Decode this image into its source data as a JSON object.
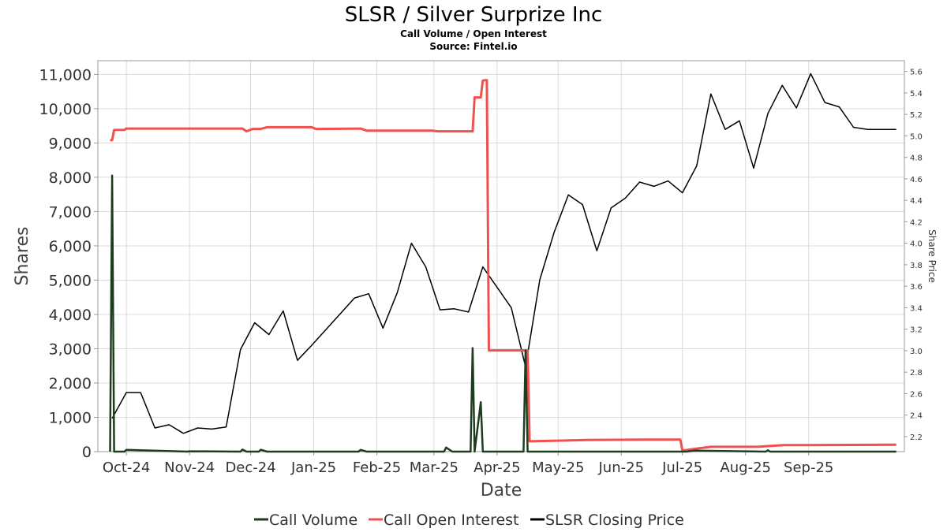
{
  "title": "SLSR / Silver Surprize Inc",
  "subtitle": "Call Volume / Open Interest",
  "source": "Source: Fintel.io",
  "chart_data": {
    "type": "line",
    "xlabel": "Date",
    "ylabel": "Shares",
    "y2label": "Share Price",
    "ylim": [
      0,
      11400
    ],
    "y2lim": [
      2.06,
      5.7
    ],
    "y_ticks": [
      0,
      1000,
      2000,
      3000,
      4000,
      5000,
      6000,
      7000,
      8000,
      9000,
      10000,
      11000
    ],
    "y_tick_labels": [
      "0",
      "1,000",
      "2,000",
      "3,000",
      "4,000",
      "5,000",
      "6,000",
      "7,000",
      "8,000",
      "9,000",
      "10,000",
      "11,000"
    ],
    "y2_ticks": [
      2.2,
      2.4,
      2.6,
      2.8,
      3.0,
      3.2,
      3.4,
      3.6,
      3.8,
      4.0,
      4.2,
      4.4,
      4.6,
      4.8,
      5.0,
      5.2,
      5.4,
      5.6
    ],
    "y2_tick_labels": [
      "2.2",
      "2.4",
      "2.6",
      "2.8",
      "3.0",
      "3.2",
      "3.4",
      "3.6",
      "3.8",
      "4.0",
      "4.2",
      "4.4",
      "4.6",
      "4.8",
      "5.0",
      "5.2",
      "5.4",
      "5.6"
    ],
    "xlim": [
      "2024-09-17",
      "2025-10-18"
    ],
    "x_ticks": [
      "2024-10-01",
      "2024-11-01",
      "2024-12-01",
      "2025-01-01",
      "2025-02-01",
      "2025-03-01",
      "2025-04-01",
      "2025-05-01",
      "2025-06-01",
      "2025-07-01",
      "2025-08-01",
      "2025-09-01"
    ],
    "x_tick_labels": [
      "Oct-24",
      "Nov-24",
      "Dec-24",
      "Jan-25",
      "Feb-25",
      "Mar-25",
      "Apr-25",
      "May-25",
      "Jun-25",
      "Jul-25",
      "Aug-25",
      "Sep-25"
    ],
    "grid": true,
    "legend_position": "bottom",
    "series": [
      {
        "name": "Call Volume",
        "axis": "left",
        "color": "#1e3d1e",
        "x": [
          "2024-09-23",
          "2024-09-24",
          "2024-09-25",
          "2024-09-30",
          "2024-10-01",
          "2024-10-31",
          "2024-11-01",
          "2024-11-26",
          "2024-11-27",
          "2024-11-29",
          "2024-12-02",
          "2024-12-05",
          "2024-12-06",
          "2024-12-09",
          "2025-01-23",
          "2025-01-24",
          "2025-01-27",
          "2025-03-06",
          "2025-03-07",
          "2025-03-10",
          "2025-03-19",
          "2025-03-20",
          "2025-03-21",
          "2025-03-24",
          "2025-03-25",
          "2025-04-11",
          "2025-04-14",
          "2025-04-15",
          "2025-04-16",
          "2025-07-03",
          "2025-07-07",
          "2025-08-11",
          "2025-08-12",
          "2025-08-13",
          "2025-10-14"
        ],
        "y": [
          0,
          8050,
          0,
          0,
          50,
          0,
          10,
          0,
          60,
          0,
          0,
          0,
          55,
          0,
          0,
          50,
          0,
          0,
          120,
          0,
          0,
          3020,
          0,
          1440,
          0,
          0,
          0,
          2950,
          0,
          0,
          30,
          0,
          40,
          0,
          0
        ]
      },
      {
        "name": "Call Open Interest",
        "axis": "left",
        "color": "#f05050",
        "x": [
          "2024-09-23",
          "2024-09-24",
          "2024-09-25",
          "2024-09-30",
          "2024-10-01",
          "2024-11-27",
          "2024-11-29",
          "2024-12-02",
          "2024-12-03",
          "2024-12-05",
          "2024-12-06",
          "2024-12-09",
          "2024-12-31",
          "2025-01-02",
          "2025-01-24",
          "2025-01-27",
          "2025-02-28",
          "2025-03-03",
          "2025-03-20",
          "2025-03-21",
          "2025-03-24",
          "2025-03-25",
          "2025-03-26",
          "2025-03-27",
          "2025-03-28",
          "2025-04-01",
          "2025-04-16",
          "2025-04-17",
          "2025-05-01",
          "2025-05-15",
          "2025-06-15",
          "2025-06-30",
          "2025-07-01",
          "2025-07-02",
          "2025-07-07",
          "2025-07-15",
          "2025-08-07",
          "2025-08-12",
          "2025-08-20",
          "2025-09-01",
          "2025-10-14"
        ],
        "y": [
          9080,
          9080,
          9380,
          9380,
          9420,
          9420,
          9340,
          9410,
          9410,
          9410,
          9410,
          9460,
          9460,
          9410,
          9420,
          9360,
          9360,
          9340,
          9340,
          10330,
          10330,
          10820,
          10830,
          10830,
          2950,
          2950,
          2950,
          300,
          320,
          340,
          350,
          350,
          40,
          40,
          80,
          140,
          140,
          160,
          190,
          190,
          200
        ]
      },
      {
        "name": "SLSR Closing Price",
        "axis": "right",
        "color": "#000000",
        "x": [
          "2024-09-24",
          "2024-10-01",
          "2024-10-08",
          "2024-10-15",
          "2024-10-22",
          "2024-10-29",
          "2024-11-05",
          "2024-11-12",
          "2024-11-19",
          "2024-11-26",
          "2024-12-03",
          "2024-12-10",
          "2024-12-17",
          "2024-12-24",
          "2024-12-31",
          "2025-01-21",
          "2025-01-28",
          "2025-02-04",
          "2025-02-11",
          "2025-02-18",
          "2025-02-25",
          "2025-03-04",
          "2025-03-11",
          "2025-03-18",
          "2025-03-25",
          "2025-04-08",
          "2025-04-15",
          "2025-04-22",
          "2025-04-29",
          "2025-05-06",
          "2025-05-13",
          "2025-05-20",
          "2025-05-27",
          "2025-06-03",
          "2025-06-10",
          "2025-06-17",
          "2025-06-24",
          "2025-07-01",
          "2025-07-08",
          "2025-07-15",
          "2025-07-22",
          "2025-07-29",
          "2025-08-05",
          "2025-08-12",
          "2025-08-19",
          "2025-08-26",
          "2025-09-02",
          "2025-09-09",
          "2025-09-16",
          "2025-09-23",
          "2025-09-30",
          "2025-10-14"
        ],
        "y": [
          2.37,
          2.61,
          2.61,
          2.28,
          2.31,
          2.23,
          2.28,
          2.27,
          2.29,
          3.01,
          3.26,
          3.15,
          3.37,
          2.91,
          3.05,
          3.49,
          3.53,
          3.21,
          3.54,
          4.0,
          3.78,
          3.38,
          3.39,
          3.36,
          3.78,
          3.4,
          2.85,
          3.66,
          4.1,
          4.45,
          4.36,
          3.93,
          4.33,
          4.42,
          4.57,
          4.53,
          4.58,
          4.47,
          4.72,
          5.39,
          5.06,
          5.14,
          4.7,
          5.21,
          5.47,
          5.26,
          5.58,
          5.31,
          5.27,
          5.08,
          5.06,
          5.06
        ]
      }
    ]
  }
}
